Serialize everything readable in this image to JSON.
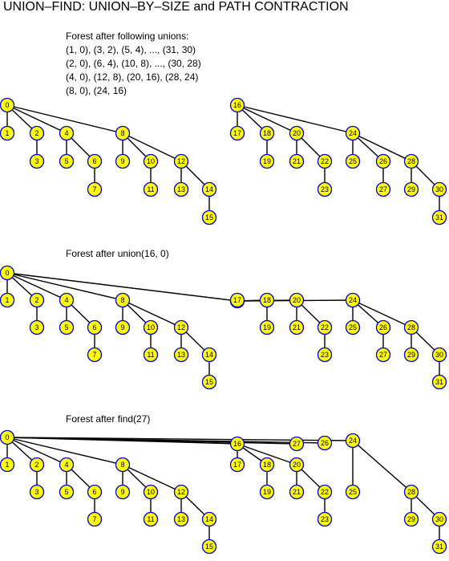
{
  "title": "UNION–FIND: UNION–BY–SIZE and PATH CONTRACTION",
  "captions": {
    "initial": {
      "heading": "Forest after following unions:",
      "lines": [
        "(1, 0), (3, 2), (5, 4), ..., (31, 30)",
        "(2, 0), (6, 4), (10, 8), ..., (30, 28)",
        "(4, 0), (12, 8), (20, 16), (28, 24)",
        "(8, 0), (24, 16)"
      ]
    },
    "after_union": "Forest after union(16, 0)",
    "after_find": "Forest after find(27)"
  },
  "node_colors": {
    "fill": "#ffff00",
    "border": "#0000cc"
  },
  "forests": [
    {
      "id": "initial",
      "roots": [
        0,
        16
      ],
      "parents": {
        "1": 0,
        "2": 0,
        "3": 2,
        "4": 0,
        "5": 4,
        "6": 4,
        "7": 6,
        "8": 0,
        "9": 8,
        "10": 8,
        "11": 10,
        "12": 8,
        "13": 12,
        "14": 12,
        "15": 14,
        "17": 16,
        "18": 16,
        "19": 18,
        "20": 16,
        "21": 20,
        "22": 20,
        "23": 22,
        "24": 16,
        "25": 24,
        "26": 24,
        "27": 26,
        "28": 24,
        "29": 28,
        "30": 28,
        "31": 30
      }
    },
    {
      "id": "after_union",
      "roots": [
        0
      ],
      "parents": {
        "1": 0,
        "2": 0,
        "3": 2,
        "4": 0,
        "5": 4,
        "6": 4,
        "7": 6,
        "8": 0,
        "9": 8,
        "10": 8,
        "11": 10,
        "12": 8,
        "13": 12,
        "14": 12,
        "15": 14,
        "16": 0,
        "17": 16,
        "18": 16,
        "19": 18,
        "20": 16,
        "21": 20,
        "22": 20,
        "23": 22,
        "24": 16,
        "25": 24,
        "26": 24,
        "27": 26,
        "28": 24,
        "29": 28,
        "30": 28,
        "31": 30
      }
    },
    {
      "id": "after_find",
      "roots": [
        0
      ],
      "parents": {
        "1": 0,
        "2": 0,
        "3": 2,
        "4": 0,
        "5": 4,
        "6": 4,
        "7": 6,
        "8": 0,
        "9": 8,
        "10": 8,
        "11": 10,
        "12": 8,
        "13": 12,
        "14": 12,
        "15": 14,
        "16": 0,
        "17": 16,
        "18": 16,
        "19": 18,
        "20": 16,
        "21": 20,
        "22": 20,
        "23": 22,
        "24": 0,
        "25": 24,
        "26": 0,
        "27": 0,
        "28": 24,
        "29": 28,
        "30": 28,
        "31": 30
      }
    }
  ]
}
